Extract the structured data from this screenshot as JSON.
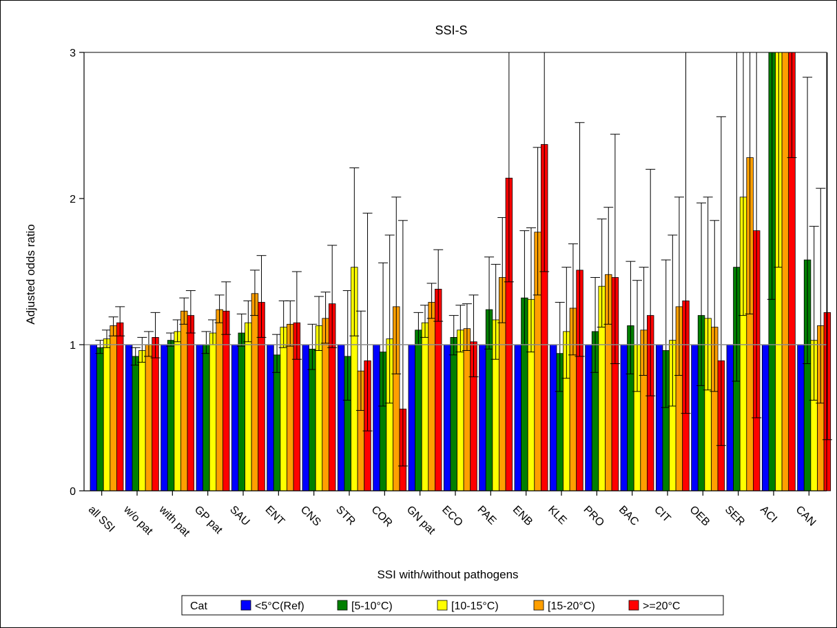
{
  "chart_data": {
    "type": "bar",
    "title": "SSI-S",
    "xlabel": "SSI with/without pathogens",
    "ylabel": "Adjusted odds ratio",
    "ylim": [
      0,
      3
    ],
    "yticks": [
      0,
      1,
      2,
      3
    ],
    "reference_line": 1,
    "grid": false,
    "legend_placement": "bottom",
    "legend_title": "Cat",
    "categories": [
      "all SSI",
      "w/o pat",
      "with pat",
      "GP pat",
      "SAU",
      "ENT",
      "CNS",
      "STR",
      "COR",
      "GN pat",
      "ECO",
      "PAE",
      "ENB",
      "KLE",
      "PRO",
      "BAC",
      "CIT",
      "OEB",
      "SER",
      "ACI",
      "CAN"
    ],
    "series": [
      {
        "name": "<5°C(Ref)",
        "color": "#0000ff",
        "values": [
          1,
          1,
          1,
          1,
          1,
          1,
          1,
          1,
          1,
          1,
          1,
          1,
          1,
          1,
          1,
          1,
          1,
          1,
          1,
          1,
          1
        ]
      },
      {
        "name": "[5-10°C)",
        "color": "#007f00",
        "values": [
          0.98,
          0.92,
          1.03,
          1.0,
          1.08,
          0.93,
          0.97,
          0.92,
          0.95,
          1.1,
          1.05,
          1.24,
          1.32,
          0.94,
          1.09,
          1.13,
          0.96,
          1.2,
          1.53,
          3.2,
          1.58
        ],
        "lower": [
          0.94,
          0.86,
          0.99,
          0.94,
          0.99,
          0.81,
          0.83,
          0.62,
          0.58,
          1.0,
          0.93,
          0.97,
          1.0,
          0.68,
          0.81,
          0.8,
          0.57,
          0.72,
          0.75,
          1.31,
          0.87
        ],
        "upper": [
          1.03,
          0.98,
          1.08,
          1.09,
          1.21,
          1.07,
          1.14,
          1.37,
          1.56,
          1.22,
          1.2,
          1.6,
          1.78,
          1.29,
          1.46,
          1.57,
          1.58,
          1.97,
          3.2,
          3.2,
          2.83
        ]
      },
      {
        "name": "[10-15°C)",
        "color": "#ffff00",
        "values": [
          1.04,
          0.96,
          1.09,
          1.08,
          1.15,
          1.12,
          1.13,
          1.53,
          1.04,
          1.15,
          1.1,
          1.17,
          1.31,
          1.09,
          1.4,
          1.0,
          1.03,
          1.18,
          2.01,
          3.2,
          1.03
        ],
        "lower": [
          0.98,
          0.88,
          1.02,
          1.0,
          1.02,
          0.98,
          0.96,
          1.06,
          0.6,
          1.05,
          0.95,
          0.9,
          0.95,
          0.77,
          1.12,
          0.68,
          0.58,
          0.69,
          1.2,
          1.53,
          0.62
        ],
        "upper": [
          1.1,
          1.05,
          1.17,
          1.17,
          1.3,
          1.3,
          1.33,
          2.21,
          1.75,
          1.27,
          1.27,
          1.55,
          1.8,
          1.53,
          1.86,
          1.44,
          1.75,
          2.01,
          3.2,
          3.2,
          1.81
        ]
      },
      {
        "name": "[15-20°C)",
        "color": "#ff9f00",
        "values": [
          1.13,
          1.0,
          1.23,
          1.24,
          1.35,
          1.14,
          1.18,
          0.82,
          1.26,
          1.29,
          1.11,
          1.46,
          1.77,
          1.25,
          1.48,
          1.1,
          1.26,
          1.12,
          2.28,
          3.2,
          1.13
        ],
        "lower": [
          1.06,
          0.92,
          1.14,
          1.15,
          1.2,
          0.99,
          1.01,
          0.55,
          0.8,
          1.18,
          0.96,
          1.15,
          1.34,
          0.93,
          1.14,
          0.79,
          0.79,
          0.68,
          1.21,
          3.2,
          0.6
        ],
        "upper": [
          1.19,
          1.09,
          1.32,
          1.34,
          1.51,
          1.3,
          1.36,
          1.23,
          2.01,
          1.42,
          1.28,
          1.87,
          2.35,
          1.69,
          1.94,
          1.53,
          2.01,
          1.85,
          3.2,
          3.2,
          2.07
        ]
      },
      {
        "name": ">=20°C",
        "color": "#ff0000",
        "values": [
          1.15,
          1.05,
          1.2,
          1.23,
          1.29,
          1.15,
          1.28,
          0.89,
          0.56,
          1.38,
          1.02,
          2.14,
          2.37,
          1.51,
          1.46,
          1.2,
          1.3,
          0.89,
          1.78,
          3.2,
          1.22
        ],
        "lower": [
          1.06,
          0.91,
          1.08,
          1.07,
          1.05,
          0.9,
          0.98,
          0.41,
          0.17,
          1.16,
          0.78,
          1.43,
          1.5,
          0.92,
          0.87,
          0.65,
          0.53,
          0.31,
          0.5,
          2.28,
          0.35
        ],
        "upper": [
          1.26,
          1.22,
          1.37,
          1.43,
          1.61,
          1.5,
          1.68,
          1.9,
          1.85,
          1.65,
          1.34,
          3.2,
          3.2,
          2.52,
          2.44,
          2.2,
          3.2,
          2.56,
          3.2,
          3.2,
          3.2
        ]
      }
    ]
  }
}
